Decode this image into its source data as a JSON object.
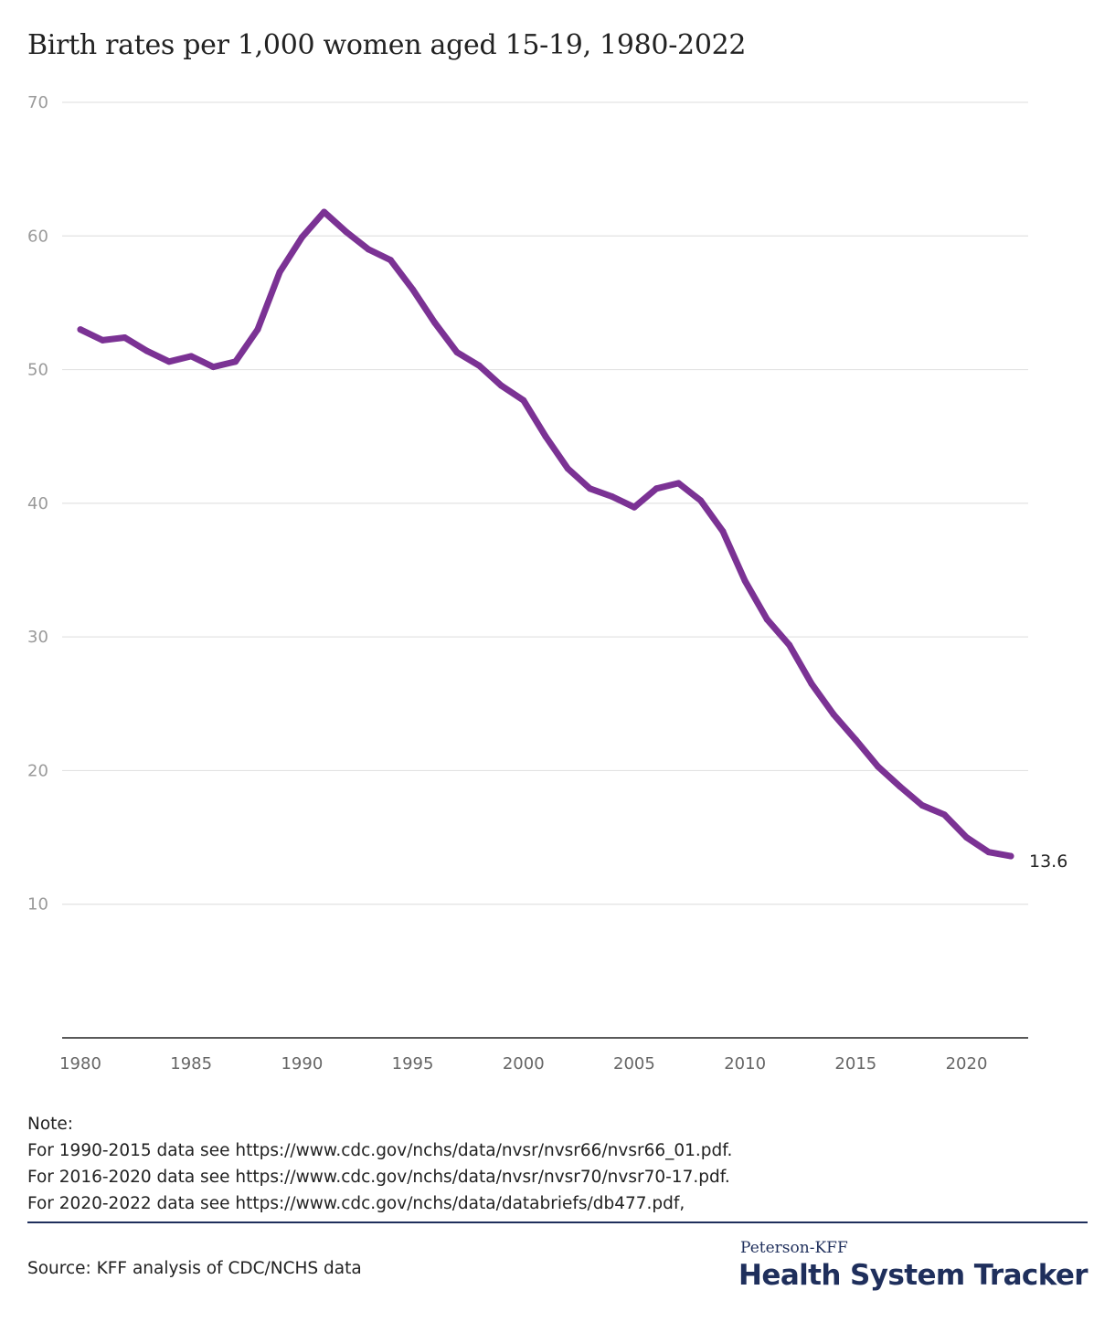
{
  "chart_data": {
    "type": "line",
    "title": "Birth rates per 1,000 women aged 15-19, 1980-2022",
    "xlabel": "",
    "ylabel": "",
    "xlim": [
      1980,
      2022
    ],
    "ylim": [
      0,
      70
    ],
    "y_ticks": [
      10,
      20,
      30,
      40,
      50,
      60,
      70
    ],
    "x_ticks": [
      1980,
      1985,
      1990,
      1995,
      2000,
      2005,
      2010,
      2015,
      2020
    ],
    "grid": true,
    "legend": "none",
    "end_label": "13.6",
    "color": "#7b3294",
    "x": [
      1980,
      1981,
      1982,
      1983,
      1984,
      1985,
      1986,
      1987,
      1988,
      1989,
      1990,
      1991,
      1992,
      1993,
      1994,
      1995,
      1996,
      1997,
      1998,
      1999,
      2000,
      2001,
      2002,
      2003,
      2004,
      2005,
      2006,
      2007,
      2008,
      2009,
      2010,
      2011,
      2012,
      2013,
      2014,
      2015,
      2016,
      2017,
      2018,
      2019,
      2020,
      2021,
      2022
    ],
    "values": [
      53.0,
      52.2,
      52.4,
      51.4,
      50.6,
      51.0,
      50.2,
      50.6,
      53.0,
      57.3,
      59.9,
      61.8,
      60.3,
      59.0,
      58.2,
      56.0,
      53.5,
      51.3,
      50.3,
      48.8,
      47.7,
      45.0,
      42.6,
      41.1,
      40.5,
      39.7,
      41.1,
      41.5,
      40.2,
      37.9,
      34.2,
      31.3,
      29.4,
      26.5,
      24.2,
      22.3,
      20.3,
      18.8,
      17.4,
      16.7,
      15.0,
      13.9,
      13.6
    ]
  },
  "notes": {
    "heading": "Note:",
    "lines": [
      "For 1990-2015 data see https://www.cdc.gov/nchs/data/nvsr/nvsr66/nvsr66_01.pdf.",
      "For 2016-2020 data see https://www.cdc.gov/nchs/data/nvsr/nvsr70/nvsr70-17.pdf.",
      "For 2020-2022 data see https://www.cdc.gov/nchs/data/databriefs/db477.pdf,"
    ]
  },
  "source": "Source: KFF analysis of CDC/NCHS data",
  "brand": {
    "top": "Peterson-KFF",
    "name": "Health System Tracker"
  }
}
